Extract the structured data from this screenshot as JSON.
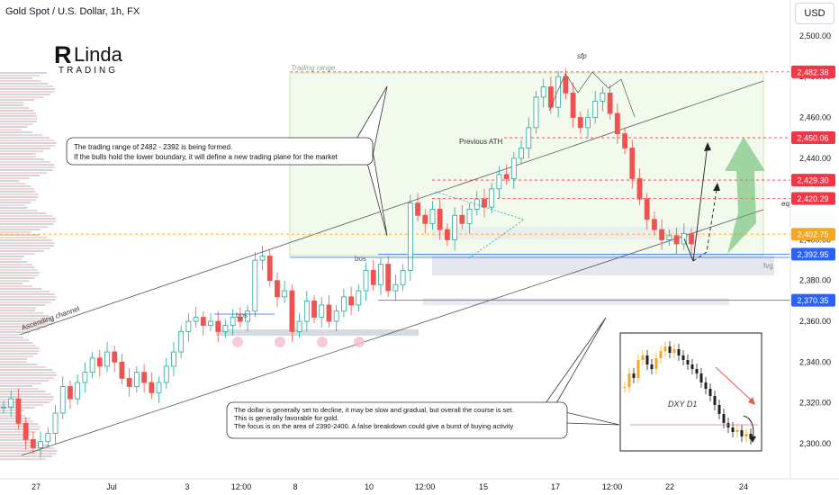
{
  "header": {
    "title": "Gold Spot / U.S. Dollar, 1h, FX",
    "currency": "USD"
  },
  "logo": {
    "text_main": "Linda",
    "text_sub": "TRADING"
  },
  "annotations": {
    "trading_range_label": "Trading range",
    "sfp_label": "sfp",
    "previous_ath_label": "Previous ATH",
    "eql_label": "eql",
    "fvg_label": "fvg",
    "bos_label_1": "bos",
    "bos_label_2": "bos",
    "channel_label": "Ascending channel",
    "callout_top_line1": "The trading range of 2482 - 2392 is being formed.",
    "callout_top_line2": "If the bulls hold the lower boundary, it will define a new trading plane for the market",
    "callout_bottom_line1": "The dollar is generally set to decline, it may be slow and gradual, but overall the course is set.",
    "callout_bottom_line2": "This is generally favorable for gold.",
    "callout_bottom_line3": "The focus is on the area of 2390-2400. A false breakdown could give a burst of buying activity",
    "inset_label": "DXY D1"
  },
  "colors": {
    "bull": "#26a69a",
    "bear": "#ef5350",
    "candle_bull_fill": "#ffffff",
    "price_red": "#f23645",
    "price_blue": "#2962ff",
    "price_yellow": "#f5a623",
    "range_fill": "#e8f5e0"
  },
  "chart_data": {
    "type": "candlestick",
    "title": "Gold Spot / U.S. Dollar, 1h, FX",
    "ylim": [
      2292,
      2514
    ],
    "y_ticks": [
      2300,
      2320,
      2340,
      2360,
      2380,
      2400,
      2420,
      2440,
      2460,
      2480,
      2500
    ],
    "y_tick_labels": [
      "2,300.00",
      "2,320.00",
      "2,340.00",
      "2,360.00",
      "2,380.00",
      "2,400.00",
      "2,420.00",
      "2,440.00",
      "2,460.00",
      "2,480.00",
      "2,500.00"
    ],
    "x_tick_labels": [
      "27",
      "Jul",
      "3",
      "12:00",
      "8",
      "10",
      "12:00",
      "15",
      "17",
      "12:00",
      "22",
      "24"
    ],
    "price_levels": [
      {
        "label": "2,482.38",
        "value": 2482.38,
        "color": "red"
      },
      {
        "label": "2,450.06",
        "value": 2450.06,
        "color": "red"
      },
      {
        "label": "2,429.30",
        "value": 2429.3,
        "color": "red"
      },
      {
        "label": "2,420.29",
        "value": 2420.29,
        "color": "red"
      },
      {
        "label": "2,402.75",
        "value": 2402.75,
        "color": "yellow"
      },
      {
        "label": "2,392.95",
        "value": 2392.95,
        "color": "blue"
      },
      {
        "label": "2,370.35",
        "value": 2370.35,
        "color": "blue"
      }
    ],
    "trading_range": [
      2392,
      2482
    ],
    "series": [
      {
        "values": [
          2318,
          2322,
          2310,
          2302,
          2298,
          2301,
          2305,
          2315,
          2328,
          2322,
          2330,
          2335,
          2342,
          2338,
          2345,
          2340,
          2332,
          2328,
          2335,
          2330,
          2325,
          2330,
          2338,
          2345,
          2355,
          2360,
          2362,
          2358,
          2360,
          2355,
          2358,
          2362,
          2360,
          2365,
          2390,
          2392,
          2380,
          2372,
          2375,
          2355,
          2360,
          2370,
          2362,
          2368,
          2360,
          2365,
          2372,
          2368,
          2375,
          2385,
          2378,
          2388,
          2375,
          2378,
          2385,
          2418,
          2412,
          2408,
          2415,
          2405,
          2400,
          2412,
          2408,
          2415,
          2420,
          2416,
          2425,
          2432,
          2430,
          2440,
          2445,
          2455,
          2470,
          2475,
          2465,
          2480,
          2472,
          2460,
          2455,
          2460,
          2468,
          2472,
          2462,
          2452,
          2445,
          2430,
          2420,
          2410,
          2405,
          2400,
          2402,
          2398,
          2403,
          2398
        ]
      }
    ]
  }
}
